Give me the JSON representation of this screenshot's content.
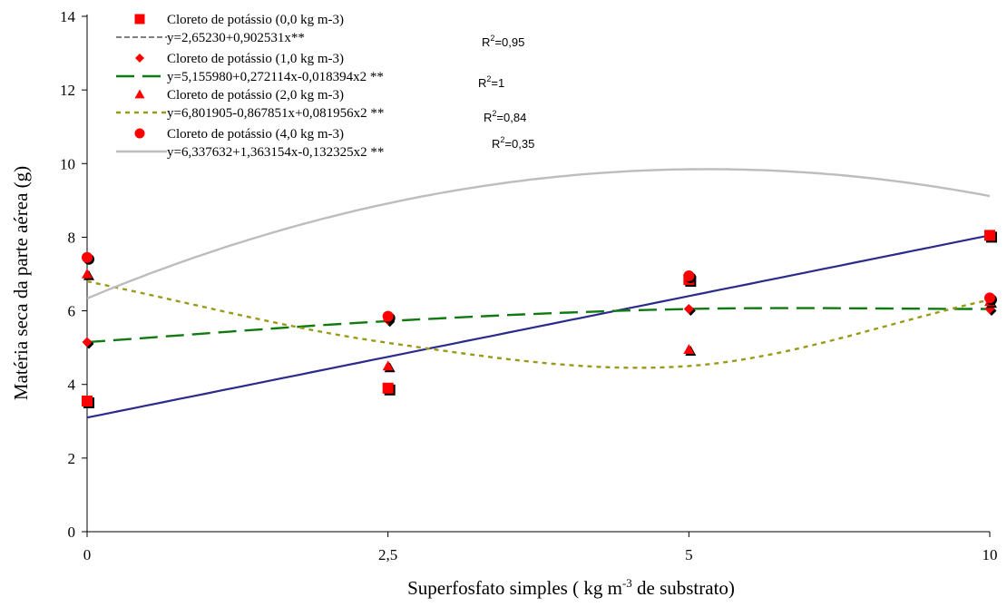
{
  "chart_data": {
    "type": "scatter",
    "xlabel": "Superfosfato simples ( kg m-3 de substrato)",
    "xlabel_parts": {
      "pre": "Superfosfato simples ( kg m",
      "sup": "-3",
      "post": " de substrato)"
    },
    "ylabel": "Matéria seca da parte aérea (g)",
    "categories": [
      "0",
      "2,5",
      "5",
      "10"
    ],
    "x": [
      0,
      2.5,
      5,
      10
    ],
    "ylim": [
      0,
      14
    ],
    "y_ticks": [
      0,
      2,
      4,
      6,
      8,
      10,
      12,
      14
    ],
    "grid": false,
    "legend_position": "top-left",
    "series": [
      {
        "name": "Cloreto de potássio (0,0 kg m-3)",
        "marker": "square",
        "values": [
          3.55,
          3.9,
          6.85,
          8.05
        ],
        "equation": "y=2,65230+0,902531x**",
        "r2_label": "R2=0,95",
        "r2_value": "=0,95",
        "line_style": "solid",
        "line_color": "#2b2b8c",
        "legend_line_color": "#000000",
        "marker_color": "#ff0000",
        "fit": {
          "kind": "linear_index",
          "a": 3.1,
          "b": 1.65
        }
      },
      {
        "name": "Cloreto de potássio (1,0 kg m-3)",
        "marker": "diamond",
        "values": [
          5.15,
          5.75,
          6.05,
          6.05
        ],
        "equation": "y=5,155980+0,272114x-0,018394x2 **",
        "r2_label": "R2=1",
        "r2_value": "=1",
        "line_style": "long-dash",
        "line_color": "#0f7a0f",
        "marker_color": "#ff0000",
        "fit": {
          "kind": "smooth",
          "points": [
            5.15,
            5.72,
            6.05,
            6.05
          ]
        }
      },
      {
        "name": "Cloreto de potássio (2,0 kg m-3)",
        "marker": "triangle",
        "values": [
          7.0,
          4.5,
          4.95,
          6.25
        ],
        "equation": "y=6,801905-0,867851x+0,081956x2 **",
        "r2_label": "R2=0,84",
        "r2_value": "=0,84",
        "line_style": "short-dash",
        "line_color": "#9a9a1a",
        "marker_color": "#ff0000",
        "fit": {
          "kind": "smooth",
          "points": [
            6.8,
            5.13,
            4.5,
            6.3
          ]
        }
      },
      {
        "name": "Cloreto de potássio (4,0 kg m-3)",
        "marker": "circle",
        "values": [
          7.45,
          5.85,
          6.95,
          6.35
        ],
        "equation": "y=6,337632+1,363154x-0,132325x2 **",
        "r2_label": "R2=0,35",
        "r2_value": "=0,35",
        "line_style": "solid",
        "line_color": "#bdbdbd",
        "marker_color": "#ff0000",
        "fit": {
          "kind": "quadratic_index",
          "c0": 6.337632,
          "c1": 1.363154,
          "c2": -0.132325
        }
      }
    ]
  }
}
